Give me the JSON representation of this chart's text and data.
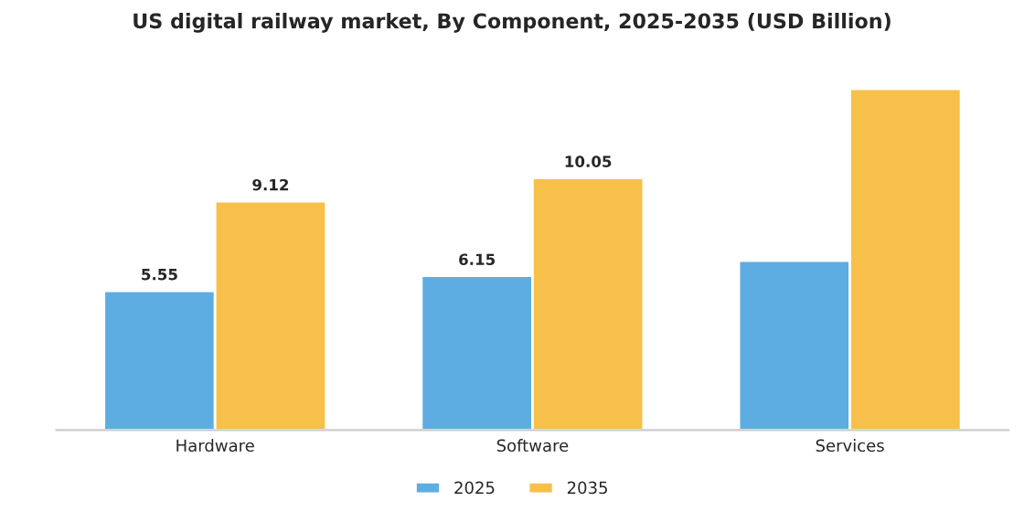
{
  "chart_data": {
    "type": "bar",
    "title": "US digital railway market, By Component, 2025-2035 (USD Billion)",
    "categories": [
      "Hardware",
      "Software",
      "Services"
    ],
    "series": [
      {
        "name": "2025",
        "color": "#5dade2",
        "values": [
          5.55,
          6.15,
          6.75
        ],
        "value_labels": [
          "5.55",
          "6.15",
          null
        ]
      },
      {
        "name": "2035",
        "color": "#f7c04a",
        "values": [
          9.12,
          10.05,
          13.6
        ],
        "value_labels": [
          "9.12",
          "10.05",
          null
        ]
      }
    ],
    "legend": "bottom",
    "tick_labels": "x"
  }
}
